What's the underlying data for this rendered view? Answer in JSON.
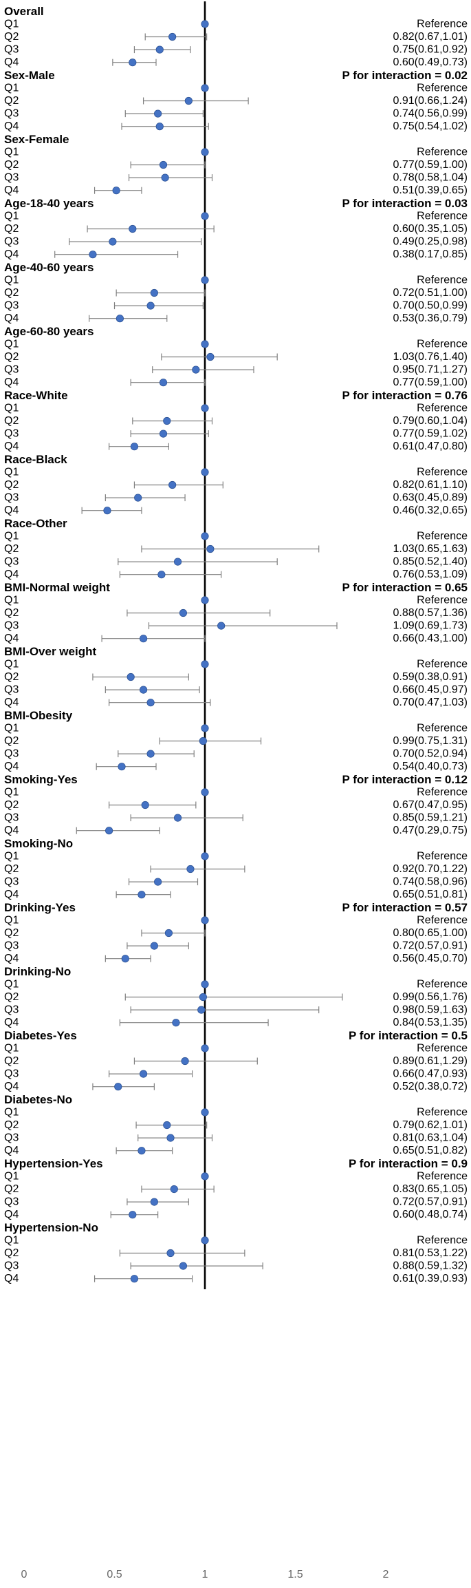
{
  "chart_data": {
    "type": "forest",
    "title": "",
    "xlabel": "",
    "ylabel": "",
    "xlim": [
      0,
      2
    ],
    "x_ticks": [
      0,
      0.5,
      1,
      1.5,
      2
    ],
    "x_tick_labels": [
      "0",
      "0.5",
      "1",
      "1.5",
      "2"
    ],
    "reference_line": 1,
    "marker_color": "#4472c4",
    "groups": [
      {
        "name": "Overall",
        "p_interaction": null,
        "rows": [
          {
            "label": "Q1",
            "text": "Reference",
            "est": 1,
            "lo": null,
            "hi": null
          },
          {
            "label": "Q2",
            "text": "0.82(0.67,1.01)",
            "est": 0.82,
            "lo": 0.67,
            "hi": 1.01
          },
          {
            "label": "Q3",
            "text": "0.75(0.61,0.92)",
            "est": 0.75,
            "lo": 0.61,
            "hi": 0.92
          },
          {
            "label": "Q4",
            "text": "0.60(0.49,0.73)",
            "est": 0.6,
            "lo": 0.49,
            "hi": 0.73
          }
        ]
      },
      {
        "name": "Sex-Male",
        "p_interaction": "P for interaction = 0.02",
        "rows": [
          {
            "label": "Q1",
            "text": "Reference",
            "est": 1,
            "lo": null,
            "hi": null
          },
          {
            "label": "Q2",
            "text": "0.91(0.66,1.24)",
            "est": 0.91,
            "lo": 0.66,
            "hi": 1.24
          },
          {
            "label": "Q3",
            "text": "0.74(0.56,0.99)",
            "est": 0.74,
            "lo": 0.56,
            "hi": 0.99
          },
          {
            "label": "Q4",
            "text": "0.75(0.54,1.02)",
            "est": 0.75,
            "lo": 0.54,
            "hi": 1.02
          }
        ]
      },
      {
        "name": "Sex-Female",
        "p_interaction": null,
        "rows": [
          {
            "label": "Q1",
            "text": "Reference",
            "est": 1,
            "lo": null,
            "hi": null
          },
          {
            "label": "Q2",
            "text": "0.77(0.59,1.00)",
            "est": 0.77,
            "lo": 0.59,
            "hi": 1.0
          },
          {
            "label": "Q3",
            "text": "0.78(0.58,1.04)",
            "est": 0.78,
            "lo": 0.58,
            "hi": 1.04
          },
          {
            "label": "Q4",
            "text": "0.51(0.39,0.65)",
            "est": 0.51,
            "lo": 0.39,
            "hi": 0.65
          }
        ]
      },
      {
        "name": "Age-18-40 years",
        "p_interaction": "P for interaction = 0.03",
        "rows": [
          {
            "label": "Q1",
            "text": "Reference",
            "est": 1,
            "lo": null,
            "hi": null
          },
          {
            "label": "Q2",
            "text": "0.60(0.35,1.05)",
            "est": 0.6,
            "lo": 0.35,
            "hi": 1.05
          },
          {
            "label": "Q3",
            "text": "0.49(0.25,0.98)",
            "est": 0.49,
            "lo": 0.25,
            "hi": 0.98
          },
          {
            "label": "Q4",
            "text": "0.38(0.17,0.85)",
            "est": 0.38,
            "lo": 0.17,
            "hi": 0.85
          }
        ]
      },
      {
        "name": "Age-40-60 years",
        "p_interaction": null,
        "rows": [
          {
            "label": "Q1",
            "text": "Reference",
            "est": 1,
            "lo": null,
            "hi": null
          },
          {
            "label": "Q2",
            "text": "0.72(0.51,1.00)",
            "est": 0.72,
            "lo": 0.51,
            "hi": 1.0
          },
          {
            "label": "Q3",
            "text": "0.70(0.50,0.99)",
            "est": 0.7,
            "lo": 0.5,
            "hi": 0.99
          },
          {
            "label": "Q4",
            "text": "0.53(0.36,0.79)",
            "est": 0.53,
            "lo": 0.36,
            "hi": 0.79
          }
        ]
      },
      {
        "name": "Age-60-80 years",
        "p_interaction": null,
        "rows": [
          {
            "label": "Q1",
            "text": "Reference",
            "est": 1,
            "lo": null,
            "hi": null
          },
          {
            "label": "Q2",
            "text": "1.03(0.76,1.40)",
            "est": 1.03,
            "lo": 0.76,
            "hi": 1.4
          },
          {
            "label": "Q3",
            "text": "0.95(0.71,1.27)",
            "est": 0.95,
            "lo": 0.71,
            "hi": 1.27
          },
          {
            "label": "Q4",
            "text": "0.77(0.59,1.00)",
            "est": 0.77,
            "lo": 0.59,
            "hi": 1.0
          }
        ]
      },
      {
        "name": "Race-White",
        "p_interaction": "P for interaction = 0.76",
        "rows": [
          {
            "label": "Q1",
            "text": "Reference",
            "est": 1,
            "lo": null,
            "hi": null
          },
          {
            "label": "Q2",
            "text": "0.79(0.60,1.04)",
            "est": 0.79,
            "lo": 0.6,
            "hi": 1.04
          },
          {
            "label": "Q3",
            "text": "0.77(0.59,1.02)",
            "est": 0.77,
            "lo": 0.59,
            "hi": 1.02
          },
          {
            "label": "Q4",
            "text": "0.61(0.47,0.80)",
            "est": 0.61,
            "lo": 0.47,
            "hi": 0.8
          }
        ]
      },
      {
        "name": "Race-Black",
        "p_interaction": null,
        "rows": [
          {
            "label": "Q1",
            "text": "Reference",
            "est": 1,
            "lo": null,
            "hi": null
          },
          {
            "label": "Q2",
            "text": "0.82(0.61,1.10)",
            "est": 0.82,
            "lo": 0.61,
            "hi": 1.1
          },
          {
            "label": "Q3",
            "text": "0.63(0.45,0.89)",
            "est": 0.63,
            "lo": 0.45,
            "hi": 0.89
          },
          {
            "label": "Q4",
            "text": "0.46(0.32,0.65)",
            "est": 0.46,
            "lo": 0.32,
            "hi": 0.65
          }
        ]
      },
      {
        "name": "Race-Other",
        "p_interaction": null,
        "rows": [
          {
            "label": "Q1",
            "text": "Reference",
            "est": 1,
            "lo": null,
            "hi": null
          },
          {
            "label": "Q2",
            "text": "1.03(0.65,1.63)",
            "est": 1.03,
            "lo": 0.65,
            "hi": 1.63
          },
          {
            "label": "Q3",
            "text": "0.85(0.52,1.40)",
            "est": 0.85,
            "lo": 0.52,
            "hi": 1.4
          },
          {
            "label": "Q4",
            "text": "0.76(0.53,1.09)",
            "est": 0.76,
            "lo": 0.53,
            "hi": 1.09
          }
        ]
      },
      {
        "name": "BMI-Normal weight",
        "p_interaction": "P for interaction = 0.65",
        "rows": [
          {
            "label": "Q1",
            "text": "Reference",
            "est": 1,
            "lo": null,
            "hi": null
          },
          {
            "label": "Q2",
            "text": "0.88(0.57,1.36)",
            "est": 0.88,
            "lo": 0.57,
            "hi": 1.36
          },
          {
            "label": "Q3",
            "text": "1.09(0.69,1.73)",
            "est": 1.09,
            "lo": 0.69,
            "hi": 1.73
          },
          {
            "label": "Q4",
            "text": "0.66(0.43,1.00)",
            "est": 0.66,
            "lo": 0.43,
            "hi": 1.0
          }
        ]
      },
      {
        "name": "BMI-Over weight",
        "p_interaction": null,
        "rows": [
          {
            "label": "Q1",
            "text": "Reference",
            "est": 1,
            "lo": null,
            "hi": null
          },
          {
            "label": "Q2",
            "text": "0.59(0.38,0.91)",
            "est": 0.59,
            "lo": 0.38,
            "hi": 0.91
          },
          {
            "label": "Q3",
            "text": "0.66(0.45,0.97)",
            "est": 0.66,
            "lo": 0.45,
            "hi": 0.97
          },
          {
            "label": "Q4",
            "text": "0.70(0.47,1.03)",
            "est": 0.7,
            "lo": 0.47,
            "hi": 1.03
          }
        ]
      },
      {
        "name": "BMI-Obesity",
        "p_interaction": null,
        "rows": [
          {
            "label": "Q1",
            "text": "Reference",
            "est": 1,
            "lo": null,
            "hi": null
          },
          {
            "label": "Q2",
            "text": "0.99(0.75,1.31)",
            "est": 0.99,
            "lo": 0.75,
            "hi": 1.31
          },
          {
            "label": "Q3",
            "text": "0.70(0.52,0.94)",
            "est": 0.7,
            "lo": 0.52,
            "hi": 0.94
          },
          {
            "label": "Q4",
            "text": "0.54(0.40,0.73)",
            "est": 0.54,
            "lo": 0.4,
            "hi": 0.73
          }
        ]
      },
      {
        "name": "Smoking-Yes",
        "p_interaction": "P for interaction = 0.12",
        "rows": [
          {
            "label": "Q1",
            "text": "Reference",
            "est": 1,
            "lo": null,
            "hi": null
          },
          {
            "label": "Q2",
            "text": "0.67(0.47,0.95)",
            "est": 0.67,
            "lo": 0.47,
            "hi": 0.95
          },
          {
            "label": "Q3",
            "text": "0.85(0.59,1.21)",
            "est": 0.85,
            "lo": 0.59,
            "hi": 1.21
          },
          {
            "label": "Q4",
            "text": "0.47(0.29,0.75)",
            "est": 0.47,
            "lo": 0.29,
            "hi": 0.75
          }
        ]
      },
      {
        "name": "Smoking-No",
        "p_interaction": null,
        "rows": [
          {
            "label": "Q1",
            "text": "Reference",
            "est": 1,
            "lo": null,
            "hi": null
          },
          {
            "label": "Q2",
            "text": "0.92(0.70,1.22)",
            "est": 0.92,
            "lo": 0.7,
            "hi": 1.22
          },
          {
            "label": "Q3",
            "text": "0.74(0.58,0.96)",
            "est": 0.74,
            "lo": 0.58,
            "hi": 0.96
          },
          {
            "label": "Q4",
            "text": "0.65(0.51,0.81)",
            "est": 0.65,
            "lo": 0.51,
            "hi": 0.81
          }
        ]
      },
      {
        "name": "Drinking-Yes",
        "p_interaction": "P for interaction = 0.57",
        "rows": [
          {
            "label": "Q1",
            "text": "Reference",
            "est": 1,
            "lo": null,
            "hi": null
          },
          {
            "label": "Q2",
            "text": "0.80(0.65,1.00)",
            "est": 0.8,
            "lo": 0.65,
            "hi": 1.0
          },
          {
            "label": "Q3",
            "text": "0.72(0.57,0.91)",
            "est": 0.72,
            "lo": 0.57,
            "hi": 0.91
          },
          {
            "label": "Q4",
            "text": "0.56(0.45,0.70)",
            "est": 0.56,
            "lo": 0.45,
            "hi": 0.7
          }
        ]
      },
      {
        "name": "Drinking-No",
        "p_interaction": null,
        "rows": [
          {
            "label": "Q1",
            "text": "Reference",
            "est": 1,
            "lo": null,
            "hi": null
          },
          {
            "label": "Q2",
            "text": "0.99(0.56,1.76)",
            "est": 0.99,
            "lo": 0.56,
            "hi": 1.76
          },
          {
            "label": "Q3",
            "text": "0.98(0.59,1.63)",
            "est": 0.98,
            "lo": 0.59,
            "hi": 1.63
          },
          {
            "label": "Q4",
            "text": "0.84(0.53,1.35)",
            "est": 0.84,
            "lo": 0.53,
            "hi": 1.35
          }
        ]
      },
      {
        "name": "Diabetes-Yes",
        "p_interaction": "P for interaction = 0.5",
        "rows": [
          {
            "label": "Q1",
            "text": "Reference",
            "est": 1,
            "lo": null,
            "hi": null
          },
          {
            "label": "Q2",
            "text": "0.89(0.61,1.29)",
            "est": 0.89,
            "lo": 0.61,
            "hi": 1.29
          },
          {
            "label": "Q3",
            "text": "0.66(0.47,0.93)",
            "est": 0.66,
            "lo": 0.47,
            "hi": 0.93
          },
          {
            "label": "Q4",
            "text": "0.52(0.38,0.72)",
            "est": 0.52,
            "lo": 0.38,
            "hi": 0.72
          }
        ]
      },
      {
        "name": "Diabetes-No",
        "p_interaction": null,
        "rows": [
          {
            "label": "Q1",
            "text": "Reference",
            "est": 1,
            "lo": null,
            "hi": null
          },
          {
            "label": "Q2",
            "text": "0.79(0.62,1.01)",
            "est": 0.79,
            "lo": 0.62,
            "hi": 1.01
          },
          {
            "label": "Q3",
            "text": "0.81(0.63,1.04)",
            "est": 0.81,
            "lo": 0.63,
            "hi": 1.04
          },
          {
            "label": "Q4",
            "text": "0.65(0.51,0.82)",
            "est": 0.65,
            "lo": 0.51,
            "hi": 0.82
          }
        ]
      },
      {
        "name": "Hypertension-Yes",
        "p_interaction": "P for interaction = 0.9",
        "rows": [
          {
            "label": "Q1",
            "text": "Reference",
            "est": 1,
            "lo": null,
            "hi": null
          },
          {
            "label": "Q2",
            "text": "0.83(0.65,1.05)",
            "est": 0.83,
            "lo": 0.65,
            "hi": 1.05
          },
          {
            "label": "Q3",
            "text": "0.72(0.57,0.91)",
            "est": 0.72,
            "lo": 0.57,
            "hi": 0.91
          },
          {
            "label": "Q4",
            "text": "0.60(0.48,0.74)",
            "est": 0.6,
            "lo": 0.48,
            "hi": 0.74
          }
        ]
      },
      {
        "name": "Hypertension-No",
        "p_interaction": null,
        "rows": [
          {
            "label": "Q1",
            "text": "Reference",
            "est": 1,
            "lo": null,
            "hi": null
          },
          {
            "label": "Q2",
            "text": "0.81(0.53,1.22)",
            "est": 0.81,
            "lo": 0.53,
            "hi": 1.22
          },
          {
            "label": "Q3",
            "text": "0.88(0.59,1.32)",
            "est": 0.88,
            "lo": 0.59,
            "hi": 1.32
          },
          {
            "label": "Q4",
            "text": "0.61(0.39,0.93)",
            "est": 0.61,
            "lo": 0.39,
            "hi": 0.93
          }
        ]
      }
    ]
  }
}
